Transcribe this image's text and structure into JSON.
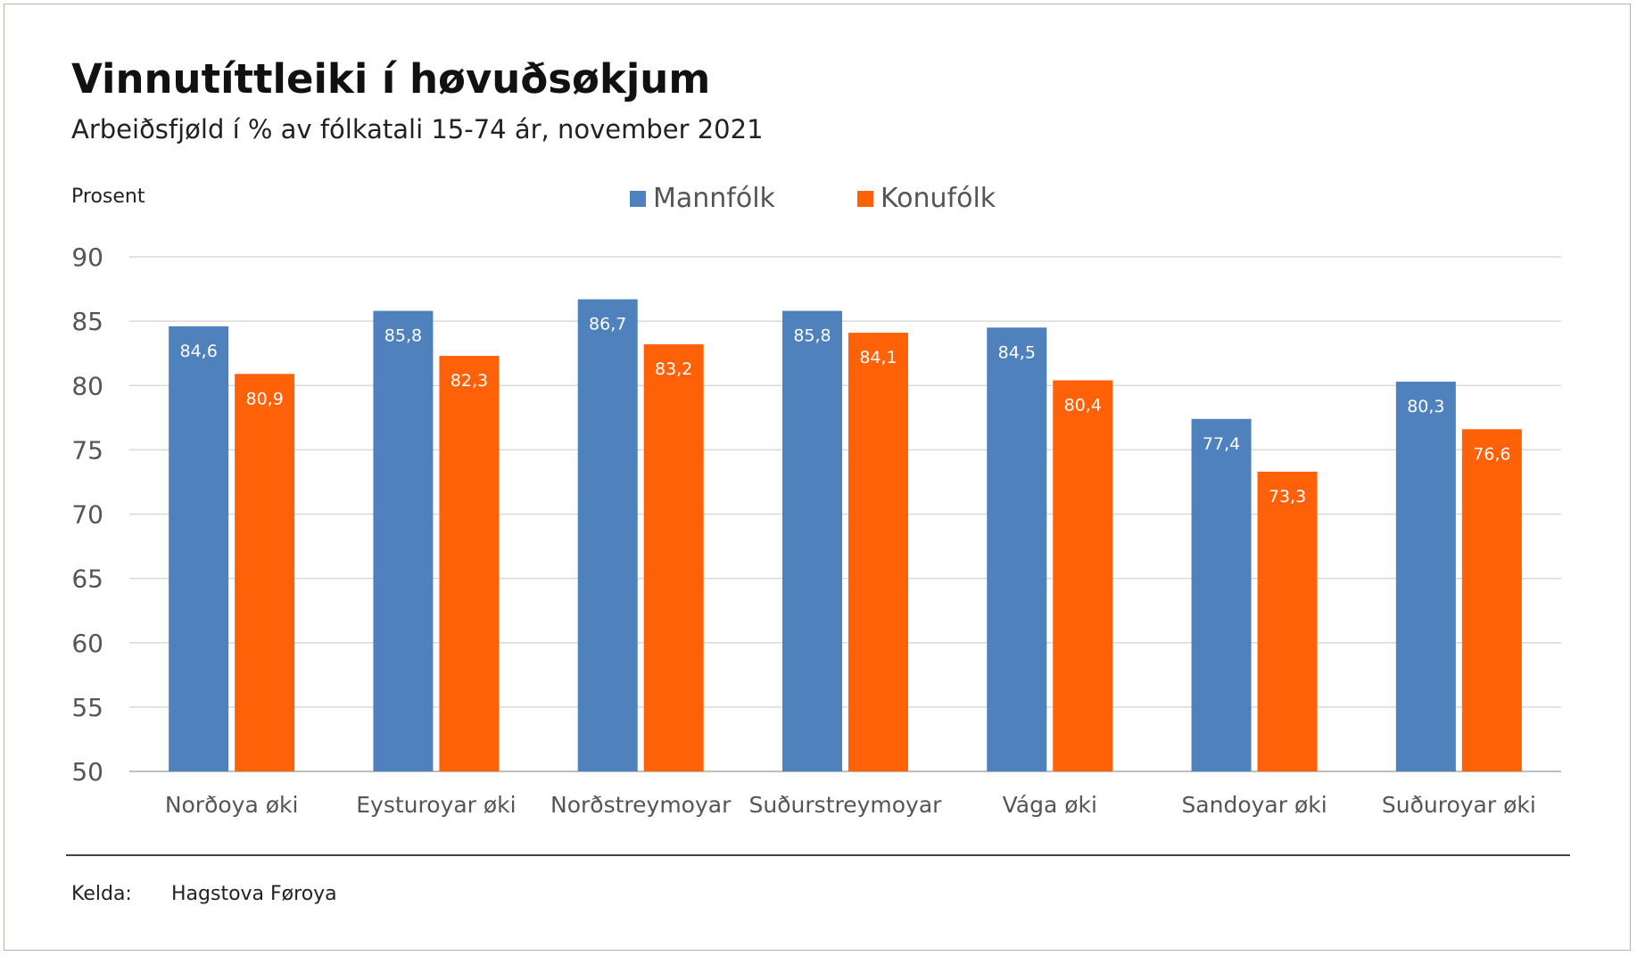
{
  "title": "Vinnutíttleiki í høvuðsøkjum",
  "subtitle": "Arbeiðsfjøld í % av fólkatali 15-74 ár, november 2021",
  "source": {
    "label": "Kelda:",
    "value": "Hagstova Føroya"
  },
  "chart_data": {
    "type": "bar",
    "ylabel": "Prosent",
    "xlabel": "",
    "ylim": [
      50,
      90
    ],
    "yticks": [
      50,
      55,
      60,
      65,
      70,
      75,
      80,
      85,
      90
    ],
    "grid": true,
    "legend_position": "top-center",
    "categories": [
      "Norðoya øki",
      "Eysturoyar øki",
      "Norðstreymoyar",
      "Suðurstreymoyar",
      "Vága øki",
      "Sandoyar øki",
      "Suðuroyar øki"
    ],
    "series": [
      {
        "name": "Mannfólk",
        "color": "#4f81bd",
        "values": [
          84.6,
          85.8,
          86.7,
          85.8,
          84.5,
          77.4,
          80.3
        ],
        "labels": [
          "84,6",
          "85,8",
          "86,7",
          "85,8",
          "84,5",
          "77,4",
          "80,3"
        ]
      },
      {
        "name": "Konufólk",
        "color": "#ff6108",
        "values": [
          80.9,
          82.3,
          83.2,
          84.1,
          80.4,
          73.3,
          76.6
        ],
        "labels": [
          "80,9",
          "82,3",
          "83,2",
          "84,1",
          "80,4",
          "73,3",
          "76,6"
        ]
      }
    ]
  }
}
